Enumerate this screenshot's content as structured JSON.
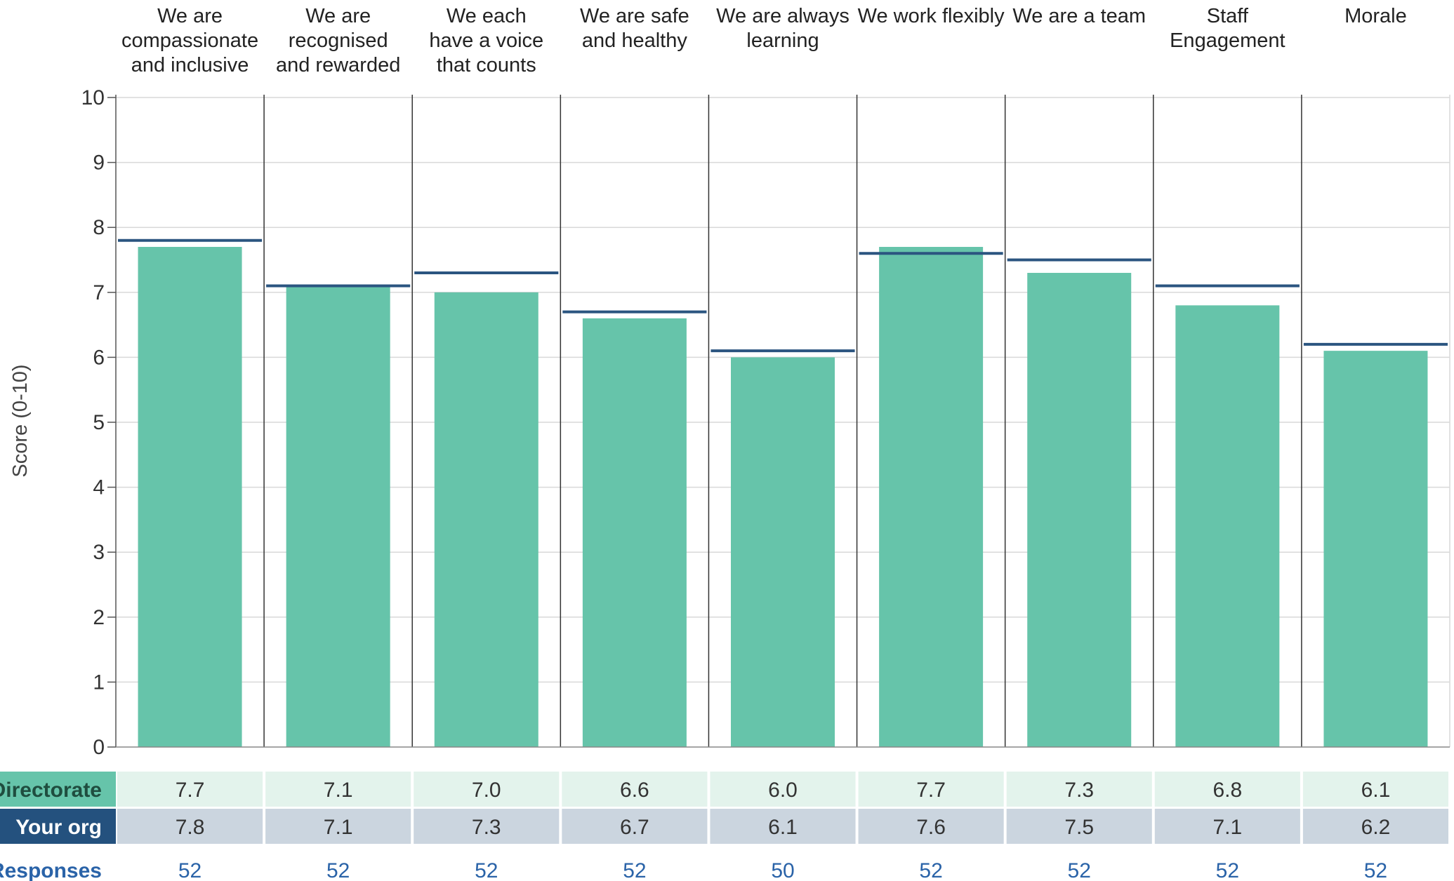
{
  "chart_data": {
    "type": "bar",
    "categories": [
      "We are compassionate and inclusive",
      "We are recognised and rewarded",
      "We each have a voice that counts",
      "We are safe and healthy",
      "We are always learning",
      "We work flexibly",
      "We are a team",
      "Staff Engagement",
      "Morale"
    ],
    "category_lines": [
      [
        "We are",
        "compassionate",
        "and inclusive"
      ],
      [
        "We are",
        "recognised",
        "and rewarded"
      ],
      [
        "We each",
        "have a voice",
        "that counts"
      ],
      [
        "We are safe",
        "and healthy"
      ],
      [
        "We are always",
        "learning"
      ],
      [
        "We work flexibly"
      ],
      [
        "We are a team"
      ],
      [
        "Staff",
        "Engagement"
      ],
      [
        "Morale"
      ]
    ],
    "series": [
      {
        "name": "Directorate",
        "type": "bar",
        "values": [
          7.7,
          7.1,
          7.0,
          6.6,
          6.0,
          7.7,
          7.3,
          6.8,
          6.1
        ],
        "labels": [
          "7.7",
          "7.1",
          "7.0",
          "6.6",
          "6.0",
          "7.7",
          "7.3",
          "6.8",
          "6.1"
        ]
      },
      {
        "name": "Your org",
        "type": "marker-line",
        "values": [
          7.8,
          7.1,
          7.3,
          6.7,
          6.1,
          7.6,
          7.5,
          7.1,
          6.2
        ],
        "labels": [
          "7.8",
          "7.1",
          "7.3",
          "6.7",
          "6.1",
          "7.6",
          "7.5",
          "7.1",
          "6.2"
        ]
      }
    ],
    "responses": {
      "label": "Responses",
      "values": [
        "52",
        "52",
        "52",
        "52",
        "50",
        "52",
        "52",
        "52",
        "52"
      ]
    },
    "ylabel": "Score (0-10)",
    "xlabel": "",
    "title": "",
    "ylim": [
      0,
      10
    ],
    "yticks": [
      "0",
      "1",
      "2",
      "3",
      "4",
      "5",
      "6",
      "7",
      "8",
      "9",
      "10"
    ],
    "grid": true,
    "colors": {
      "bar": "#66c4aa",
      "marker": "#2b5580",
      "directorate_row": "#e3f3ec",
      "directorate_label_bg": "#66c4aa",
      "org_row": "#cbd5df",
      "org_label_bg": "#24517e",
      "responses_text": "#2a63a8",
      "grid": "#d9d9d9",
      "separator": "#333333"
    }
  }
}
